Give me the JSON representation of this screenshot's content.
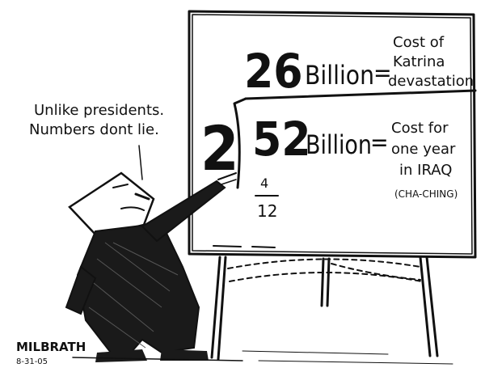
{
  "caption": {
    "line1": "Unlike presidents.",
    "line2": "Numbers dont lie."
  },
  "board": {
    "quotient_number": "26",
    "quotient_unit": "Billion",
    "quotient_equals": "=",
    "quotient_desc": [
      "Cost of",
      "Katrina",
      "devastation"
    ],
    "divisor": "2",
    "dividend_number": "52",
    "dividend_unit": "Billion",
    "dividend_equals": "=",
    "dividend_desc": [
      "Cost for",
      "one year",
      "in IRAQ"
    ],
    "aside": "(CHA-CHING)",
    "fraction_numerator": "4",
    "fraction_denominator": "12"
  },
  "signature": {
    "name": "MILBRATH",
    "date": "8-31-05"
  }
}
